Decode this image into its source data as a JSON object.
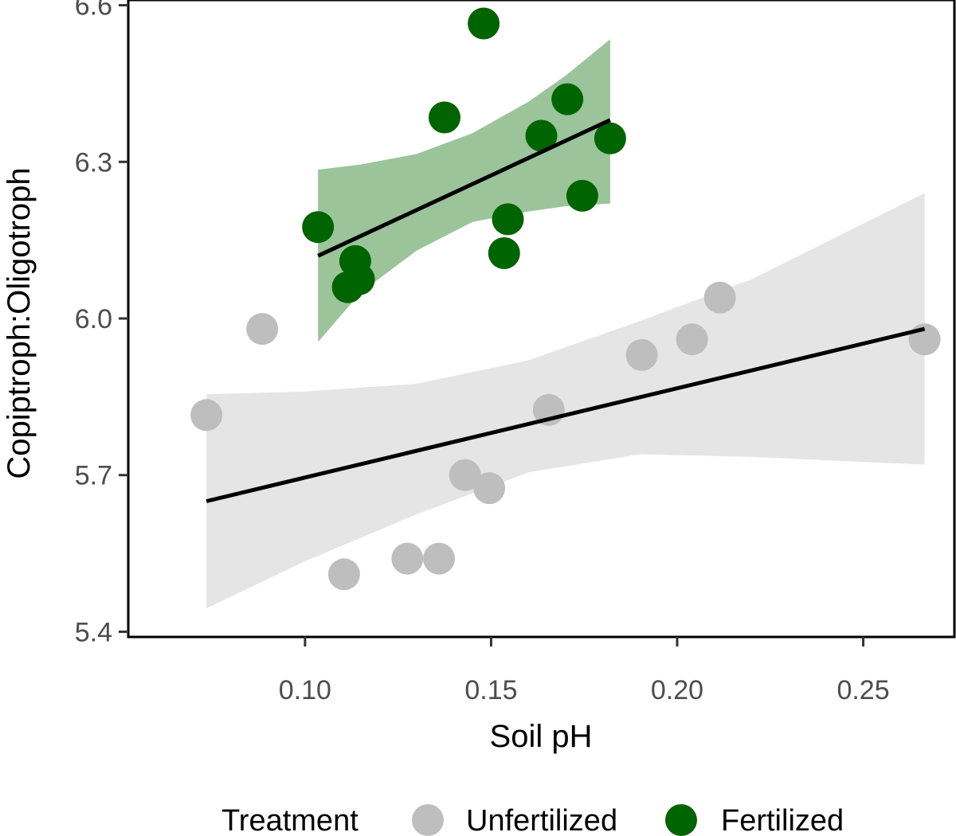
{
  "chart_data": {
    "type": "scatter",
    "xlabel": "Soil pH",
    "ylabel": "Copiptroph:Oligotroph",
    "xlim": [
      0.0525,
      0.2745
    ],
    "ylim": [
      5.39,
      6.61
    ],
    "x_ticks": [
      0.1,
      0.15,
      0.2,
      0.25
    ],
    "x_tick_labels": [
      "0.10",
      "0.15",
      "0.20",
      "0.25"
    ],
    "y_ticks": [
      5.4,
      5.7,
      6.0,
      6.3,
      6.6
    ],
    "y_tick_labels": [
      "5.4",
      "5.7",
      "6.0",
      "6.3",
      "6.6"
    ],
    "grid": false,
    "legend": {
      "title": "Treatment",
      "position": "bottom",
      "entries": [
        "Unfertilized",
        "Fertilized"
      ]
    },
    "series": [
      {
        "name": "Unfertilized",
        "color": "#bebebe",
        "band_color": "#e5e5e5",
        "points": [
          [
            0.0735,
            5.815
          ],
          [
            0.0885,
            5.98
          ],
          [
            0.1105,
            5.51
          ],
          [
            0.1275,
            5.54
          ],
          [
            0.136,
            5.54
          ],
          [
            0.143,
            5.7
          ],
          [
            0.1495,
            5.675
          ],
          [
            0.1655,
            5.825
          ],
          [
            0.1905,
            5.93
          ],
          [
            0.204,
            5.96
          ],
          [
            0.2115,
            6.04
          ],
          [
            0.2665,
            5.96
          ]
        ],
        "fit": {
          "x": [
            0.0735,
            0.2665
          ],
          "y": [
            5.65,
            5.98
          ]
        },
        "band": {
          "x": [
            0.0735,
            0.1,
            0.13,
            0.16,
            0.19,
            0.22,
            0.2665
          ],
          "upper": [
            5.855,
            5.86,
            5.875,
            5.92,
            5.995,
            6.075,
            6.24
          ],
          "lower": [
            5.445,
            5.535,
            5.625,
            5.705,
            5.74,
            5.735,
            5.72
          ]
        }
      },
      {
        "name": "Fertilized",
        "color": "#006400",
        "band_color": "#9bc49b",
        "points": [
          [
            0.1035,
            6.175
          ],
          [
            0.1115,
            6.06
          ],
          [
            0.1135,
            6.11
          ],
          [
            0.1145,
            6.075
          ],
          [
            0.1375,
            6.385
          ],
          [
            0.148,
            6.565
          ],
          [
            0.1535,
            6.125
          ],
          [
            0.1545,
            6.19
          ],
          [
            0.1635,
            6.35
          ],
          [
            0.1705,
            6.42
          ],
          [
            0.1745,
            6.235
          ],
          [
            0.182,
            6.345
          ]
        ],
        "fit": {
          "x": [
            0.1035,
            0.182
          ],
          "y": [
            6.12,
            6.38
          ]
        },
        "band": {
          "x": [
            0.1035,
            0.115,
            0.13,
            0.145,
            0.16,
            0.17,
            0.182
          ],
          "upper": [
            6.285,
            6.295,
            6.315,
            6.355,
            6.415,
            6.465,
            6.535
          ],
          "lower": [
            5.955,
            6.05,
            6.13,
            6.185,
            6.205,
            6.215,
            6.22
          ]
        }
      }
    ]
  }
}
